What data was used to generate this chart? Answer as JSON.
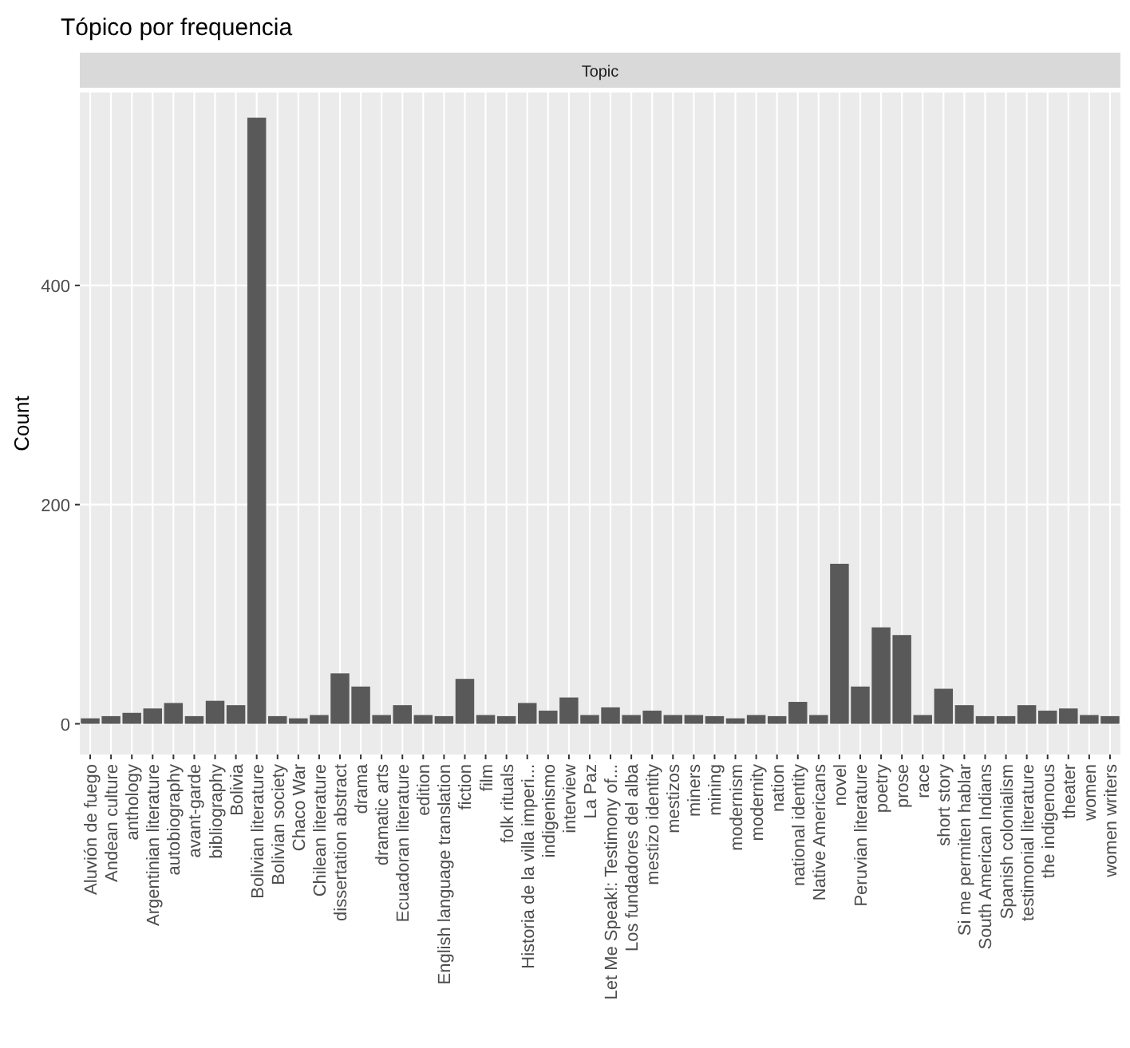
{
  "chart_data": {
    "type": "bar",
    "title": "Tópico por frequencia",
    "subtitle": "Topic",
    "ylabel": "Count",
    "categories": [
      "Aluvión de fuego",
      "Andean culture",
      "anthology",
      "Argentinian literature",
      "autobiography",
      "avant-garde",
      "bibliography",
      "Bolivia",
      "Bolivian literature",
      "Bolivian society",
      "Chaco War",
      "Chilean literature",
      "dissertation abstract",
      "drama",
      "dramatic arts",
      "Ecuadoran literature",
      "edition",
      "English language translation",
      "fiction",
      "film",
      "folk rituals",
      "Historia de la villa imperi...",
      "indigenismo",
      "interview",
      "La Paz",
      "Let Me Speak!: Testimony of...",
      "Los fundadores del alba",
      "mestizo identity",
      "mestizos",
      "miners",
      "mining",
      "modernism",
      "modernity",
      "nation",
      "national identity",
      "Native Americans",
      "novel",
      "Peruvian literature",
      "poetry",
      "prose",
      "race",
      "short story",
      "Si me permiten hablar",
      "South American Indians",
      "Spanish colonialism",
      "testimonial literature",
      "the indigenous",
      "theater",
      "women",
      "women writers"
    ],
    "values": [
      5,
      7,
      10,
      14,
      19,
      7,
      21,
      17,
      553,
      7,
      5,
      8,
      46,
      34,
      8,
      17,
      8,
      7,
      41,
      8,
      7,
      19,
      12,
      24,
      8,
      15,
      8,
      12,
      8,
      8,
      7,
      5,
      8,
      7,
      20,
      8,
      146,
      34,
      88,
      81,
      8,
      32,
      17,
      7,
      7,
      17,
      12,
      14,
      8,
      7
    ],
    "color": "#595959",
    "ylim": [
      -28,
      576
    ],
    "yticks": [
      0,
      200,
      400
    ],
    "grid": true
  }
}
